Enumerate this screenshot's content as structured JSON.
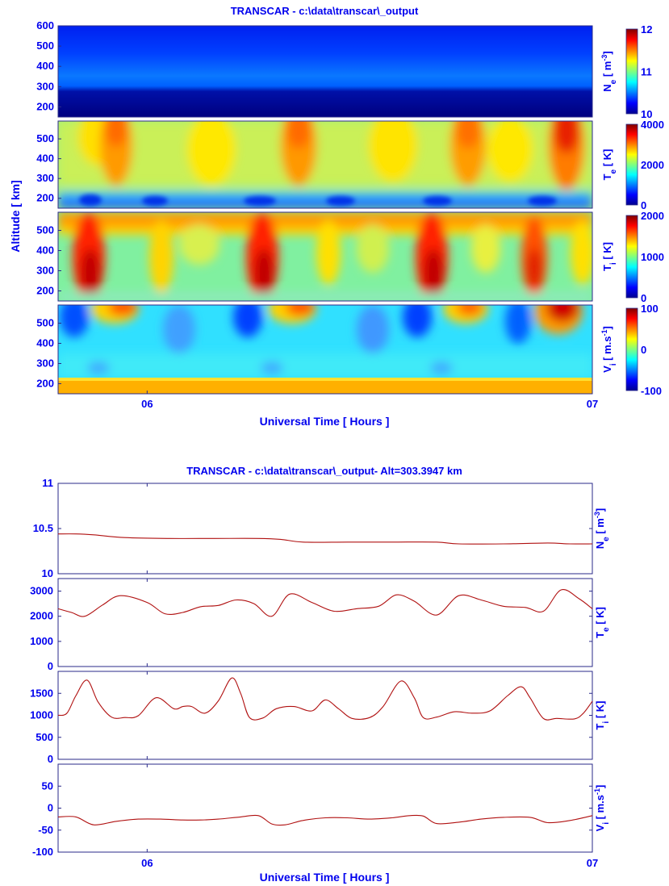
{
  "colors": {
    "text": "#0000ee",
    "axis": "#2a2a8a",
    "line": "#b01010",
    "background": "#ffffff"
  },
  "chart_data": [
    {
      "type": "heatmap",
      "title": "TRANSCAR - c:\\data\\transcar\\_output",
      "xlabel": "Universal Time [ Hours ]",
      "ylabel": "Altitude  [ km]",
      "x_ticks": [
        "06",
        "07"
      ],
      "xlim": [
        5.8,
        7.0
      ],
      "colormap": "jet",
      "panels": [
        {
          "name": "Ne",
          "label_main": "N",
          "label_sub": "e",
          "label_unit": " [ m",
          "label_sup": "-3",
          "label_end": "]",
          "ylim": [
            150,
            600
          ],
          "yticks": [
            200,
            300,
            400,
            500,
            600
          ],
          "clim": [
            10,
            12
          ],
          "cticks": [
            10,
            11,
            12
          ]
        },
        {
          "name": "Te",
          "label_main": "T",
          "label_sub": "e",
          "label_unit": " [ K]",
          "label_sup": "",
          "label_end": "",
          "ylim": [
            150,
            590
          ],
          "yticks": [
            200,
            300,
            400,
            500
          ],
          "clim": [
            0,
            4000
          ],
          "cticks": [
            0,
            2000,
            4000
          ]
        },
        {
          "name": "Ti",
          "label_main": "T",
          "label_sub": "i",
          "label_unit": " [ K]",
          "label_sup": "",
          "label_end": "",
          "ylim": [
            150,
            590
          ],
          "yticks": [
            200,
            300,
            400,
            500
          ],
          "clim": [
            0,
            2000
          ],
          "cticks": [
            0,
            1000,
            2000
          ]
        },
        {
          "name": "Vi",
          "label_main": "V",
          "label_sub": "i",
          "label_unit": " [ m.s",
          "label_sup": "-1",
          "label_end": "]",
          "ylim": [
            150,
            590
          ],
          "yticks": [
            200,
            300,
            400,
            500
          ],
          "clim": [
            -100,
            100
          ],
          "cticks": [
            -100,
            0,
            100
          ]
        }
      ]
    },
    {
      "type": "line",
      "title": "TRANSCAR - c:\\data\\transcar\\_output- Alt=303.3947 km",
      "xlabel": "Universal Time [ Hours ]",
      "x_ticks": [
        "06",
        "07"
      ],
      "xlim": [
        5.8,
        7.0
      ],
      "panels": [
        {
          "name": "Ne",
          "label_main": "N",
          "label_sub": "e",
          "label_unit": " [ m",
          "label_sup": "-3",
          "label_end": "]",
          "ylim": [
            10,
            11
          ],
          "yticks": [
            10,
            10.5,
            11
          ],
          "x": [
            5.8,
            5.84,
            5.88,
            5.95,
            6.05,
            6.15,
            6.25,
            6.3,
            6.35,
            6.45,
            6.55,
            6.65,
            6.7,
            6.8,
            6.9,
            6.95,
            7.0
          ],
          "y": [
            10.44,
            10.44,
            10.43,
            10.4,
            10.39,
            10.39,
            10.39,
            10.38,
            10.35,
            10.35,
            10.35,
            10.35,
            10.33,
            10.33,
            10.34,
            10.33,
            10.33
          ]
        },
        {
          "name": "Te",
          "label_main": "T",
          "label_sub": "e",
          "label_unit": " [ K]",
          "label_sup": "",
          "label_end": "",
          "ylim": [
            0,
            3500
          ],
          "yticks": [
            0,
            1000,
            2000,
            3000
          ],
          "x": [
            5.8,
            5.83,
            5.86,
            5.9,
            5.94,
            6.0,
            6.04,
            6.08,
            6.12,
            6.16,
            6.2,
            6.24,
            6.28,
            6.32,
            6.37,
            6.42,
            6.47,
            6.52,
            6.56,
            6.6,
            6.65,
            6.7,
            6.75,
            6.8,
            6.85,
            6.89,
            6.93,
            6.97,
            7.0
          ],
          "y": [
            2300,
            2150,
            2000,
            2450,
            2820,
            2550,
            2100,
            2150,
            2380,
            2430,
            2650,
            2500,
            2000,
            2880,
            2550,
            2200,
            2300,
            2400,
            2850,
            2600,
            2050,
            2820,
            2650,
            2400,
            2350,
            2200,
            3050,
            2700,
            2300
          ]
        },
        {
          "name": "Ti",
          "label_main": "T",
          "label_sub": "i",
          "label_unit": " [ K]",
          "label_sup": "",
          "label_end": "",
          "ylim": [
            0,
            2000
          ],
          "yticks": [
            0,
            500,
            1000,
            1500
          ],
          "x": [
            5.8,
            5.82,
            5.84,
            5.865,
            5.89,
            5.92,
            5.95,
            5.98,
            6.02,
            6.06,
            6.08,
            6.1,
            6.13,
            6.16,
            6.19,
            6.21,
            6.23,
            6.26,
            6.29,
            6.33,
            6.37,
            6.4,
            6.43,
            6.46,
            6.5,
            6.53,
            6.57,
            6.6,
            6.62,
            6.65,
            6.69,
            6.73,
            6.77,
            6.81,
            6.84,
            6.86,
            6.89,
            6.92,
            6.96,
            6.98,
            7.0
          ],
          "y": [
            1000,
            1050,
            1450,
            1800,
            1300,
            960,
            950,
            990,
            1400,
            1150,
            1200,
            1200,
            1050,
            1330,
            1850,
            1500,
            950,
            940,
            1150,
            1200,
            1100,
            1350,
            1150,
            930,
            950,
            1200,
            1780,
            1400,
            950,
            960,
            1080,
            1050,
            1100,
            1450,
            1650,
            1400,
            930,
            930,
            920,
            1050,
            1320
          ]
        },
        {
          "name": "Vi",
          "label_main": "V",
          "label_sub": "i",
          "label_unit": " [ m.s",
          "label_sup": "-1",
          "label_end": "]",
          "ylim": [
            -100,
            100
          ],
          "yticks": [
            -100,
            -50,
            0,
            50
          ],
          "x": [
            5.8,
            5.84,
            5.88,
            5.93,
            5.98,
            6.03,
            6.08,
            6.12,
            6.16,
            6.21,
            6.25,
            6.28,
            6.31,
            6.35,
            6.4,
            6.45,
            6.5,
            6.55,
            6.59,
            6.62,
            6.65,
            6.7,
            6.75,
            6.8,
            6.86,
            6.9,
            6.95,
            7.0
          ],
          "y": [
            -20,
            -20,
            -38,
            -30,
            -25,
            -25,
            -27,
            -27,
            -25,
            -20,
            -17,
            -36,
            -38,
            -28,
            -22,
            -22,
            -25,
            -22,
            -17,
            -18,
            -35,
            -32,
            -25,
            -21,
            -21,
            -33,
            -28,
            -17
          ]
        }
      ]
    }
  ]
}
